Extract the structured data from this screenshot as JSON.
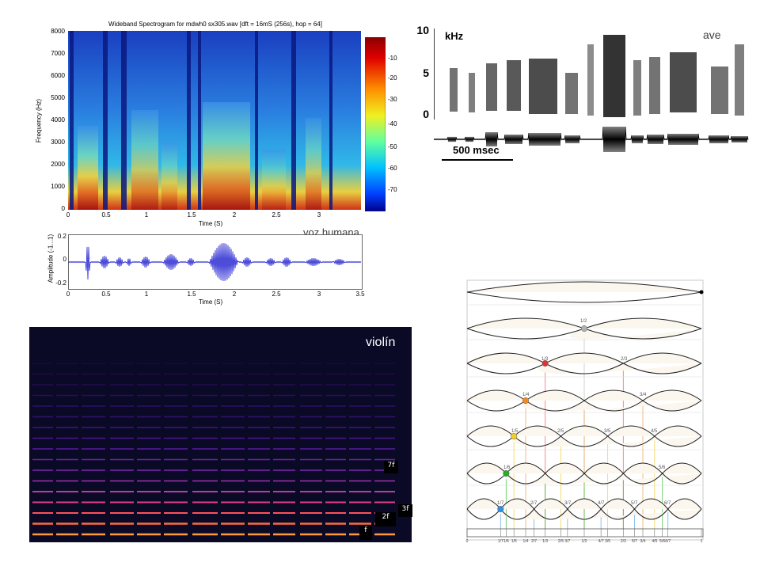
{
  "voice": {
    "title": "Wideband Spectrogram for mdwh0 sx305.wav [dft = 16mS (256s), hop = 64]",
    "y_label": "Frequency (Hz)",
    "y_ticks": [
      "8000",
      "7000",
      "6000",
      "5000",
      "4000",
      "3000",
      "2000",
      "1000",
      "0"
    ],
    "x_ticks": [
      "0",
      "0.5",
      "1",
      "1.5",
      "2",
      "2.5",
      "3"
    ],
    "x_label": "Time (S)",
    "colorbar_ticks": [
      "-10",
      "-20",
      "-30",
      "-40",
      "-50",
      "-60",
      "-70"
    ],
    "caption": "voz humana",
    "wave": {
      "y_label": "Amplitude (-1...1)",
      "y_ticks": [
        "0.2",
        "0",
        "-0.2"
      ],
      "x_ticks": [
        "0",
        "0.5",
        "1",
        "1.5",
        "2",
        "2.5",
        "3",
        "3.5"
      ],
      "x_label": "Time (S)"
    }
  },
  "bird": {
    "unit": "kHz",
    "y_ticks": [
      "10",
      "5",
      "0"
    ],
    "scale_label": "500 msec",
    "caption": "ave"
  },
  "violin": {
    "caption": "violín",
    "tags": [
      "7f",
      "3f",
      "2f",
      "f"
    ]
  },
  "string_modes": {
    "fractions": {
      "m2": [
        "1/2"
      ],
      "m3": [
        "1/3",
        "2/3"
      ],
      "m4": [
        "1/4",
        "3/4"
      ],
      "m5": [
        "1/5",
        "2/5",
        "3/5",
        "4/5"
      ],
      "m6": [
        "1/6",
        "5/6"
      ],
      "m7": [
        "1/7",
        "2/7",
        "3/7",
        "4/7",
        "5/7",
        "6/7"
      ]
    },
    "axis_labels": [
      "0",
      "1/7",
      "1/6",
      "1/5",
      "1/4",
      "2/7",
      "1/3",
      "2/5",
      "3/7",
      "1/2",
      "4/7",
      "3/5",
      "2/3",
      "5/7",
      "3/4",
      "4/5",
      "5/6",
      "6/7",
      "1"
    ],
    "node_colors": [
      "#b0b0b0",
      "#e03030",
      "#f08a20",
      "#f0d020",
      "#20b020",
      "#3090e0"
    ]
  }
}
